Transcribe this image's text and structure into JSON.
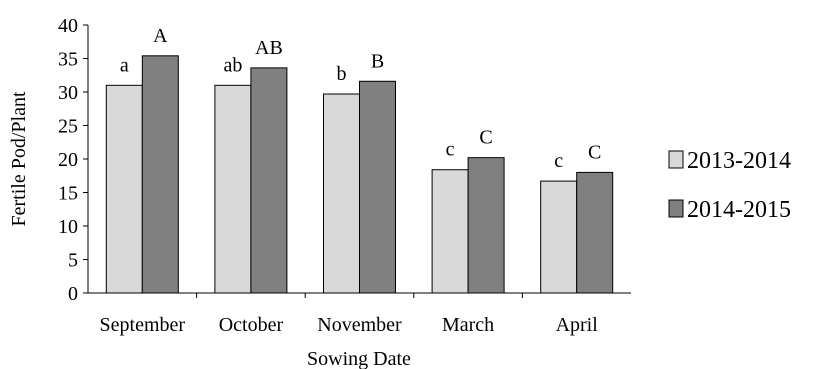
{
  "chart_data": {
    "type": "bar",
    "xlabel": "Sowing Date",
    "ylabel": "Fertile Pod/Plant",
    "ylim": [
      0,
      40
    ],
    "yticks": [
      "0",
      "5",
      "10",
      "15",
      "20",
      "25",
      "30",
      "35",
      "40"
    ],
    "categories": [
      "September",
      "October",
      "November",
      "March",
      "April"
    ],
    "series": [
      {
        "name": "2013-2014",
        "color": "#d9d9d9",
        "values": [
          31.0,
          31.0,
          29.7,
          18.4,
          16.7
        ],
        "labels": [
          "a",
          "ab",
          "b",
          "c",
          "c"
        ]
      },
      {
        "name": "2014-2015",
        "color": "#808080",
        "values": [
          35.4,
          33.6,
          31.6,
          20.2,
          18.0
        ],
        "labels": [
          "A",
          "AB",
          "B",
          "C",
          "C"
        ]
      }
    ],
    "legend_position": "right",
    "grid": false
  }
}
